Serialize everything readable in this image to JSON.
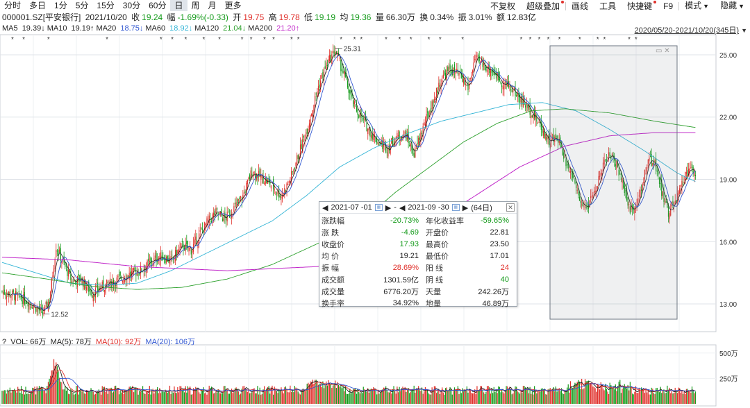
{
  "toolbar": {
    "left": [
      "分时",
      "多日",
      "1分",
      "5分",
      "15分",
      "30分",
      "60分",
      "日",
      "周",
      "月",
      "更多"
    ],
    "active_index": 7,
    "right": [
      {
        "label": "不复权",
        "dot": false,
        "arrow": false
      },
      {
        "label": "超级叠加",
        "dot": true,
        "arrow": false
      },
      {
        "label": "画线",
        "dot": false,
        "arrow": false
      },
      {
        "label": "工具",
        "dot": false,
        "arrow": false
      },
      {
        "label": "快捷键",
        "dot": true,
        "arrow": false
      },
      {
        "label": "F9",
        "dot": false,
        "arrow": false
      },
      {
        "label": "模式",
        "dot": false,
        "arrow": true
      },
      {
        "label": "隐藏",
        "dot": false,
        "arrow": true
      }
    ]
  },
  "stock": {
    "code": "000001.SZ[平安银行]",
    "date": "2021/10/20",
    "close_label": "收",
    "close": "19.24",
    "change_label": "幅",
    "change": "-1.69%(-0.33)",
    "open_label": "开",
    "open": "19.75",
    "high_label": "高",
    "high": "19.78",
    "low_label": "低",
    "low": "19.19",
    "avg_label": "均",
    "avg": "19.36",
    "vol_label": "量",
    "vol": "66.30万",
    "turn_label": "换",
    "turn": "0.34%",
    "amp_label": "振",
    "amp": "3.01%",
    "amt_label": "额",
    "amt": "12.83亿"
  },
  "ma": [
    {
      "label": "MA5",
      "value": "19.39↓",
      "color": "#222222"
    },
    {
      "label": "MA10",
      "value": "19.19↑",
      "color": "#222222"
    },
    {
      "label": "MA20",
      "value": "18.75↓",
      "color": "#3157d1"
    },
    {
      "label": "MA60",
      "value": "18.92↓",
      "color": "#35b5d6"
    },
    {
      "label": "MA120",
      "value": "21.04↓",
      "color": "#2ca02c"
    },
    {
      "label": "MA200",
      "value": "21.20↑",
      "color": "#c026c9"
    }
  ],
  "date_range": "2020/05/20-2021/10/20(345日)",
  "volume_line": {
    "prefix": "?",
    "vol": "VOL: 66万",
    "ma5": "MA(5): 78万",
    "ma10": "MA(10): 92万",
    "ma20": "MA(20): 106万"
  },
  "popup": {
    "start": "2021-07 -01",
    "end": "2021-09 -30",
    "sep": "-",
    "days": "(64日)",
    "rows": [
      {
        "k": "涨跌幅",
        "v": "-20.73%",
        "vc": "down",
        "k2": "年化收益率",
        "v2": "-59.65%",
        "v2c": "down"
      },
      {
        "k": "涨  跌",
        "v": "-4.69",
        "vc": "down",
        "k2": "开盘价",
        "v2": "22.81",
        "v2c": "dark"
      },
      {
        "k": "收盘价",
        "v": "17.93",
        "vc": "down",
        "k2": "最高价",
        "v2": "23.50",
        "v2c": "dark"
      },
      {
        "k": "均  价",
        "v": "19.21",
        "vc": "dark",
        "k2": "最低价",
        "v2": "17.01",
        "v2c": "dark"
      },
      {
        "k": "振  幅",
        "v": "28.69%",
        "vc": "up",
        "k2": "阳  线",
        "v2": "24",
        "v2c": "up"
      },
      {
        "k": "成交额",
        "v": "1301.59亿",
        "vc": "dark",
        "k2": "阴  线",
        "v2": "40",
        "v2c": "down"
      },
      {
        "k": "成交量",
        "v": "6776.20万",
        "vc": "dark",
        "k2": "天量",
        "v2": "242.26万",
        "v2c": "dark"
      },
      {
        "k": "换手率",
        "v": "34.92%",
        "vc": "dark",
        "k2": "地量",
        "v2": "46.89万",
        "v2c": "dark"
      }
    ]
  },
  "chart_data": {
    "type": "candlestick",
    "y_ticks": [
      "25.00",
      "22.00",
      "19.00",
      "16.00",
      "13.00"
    ],
    "y_values": [
      25,
      22,
      19,
      16,
      13
    ],
    "ylim": [
      12.2,
      25.5
    ],
    "vol_ticks": [
      "500万",
      "250万"
    ],
    "vol_values": [
      500,
      250
    ],
    "vol_ylim": [
      0,
      560
    ],
    "grid": true,
    "annotations": [
      {
        "text": "25.31",
        "price": 25.31
      },
      {
        "text": "12.52",
        "price": 12.52
      }
    ],
    "anchors": [
      [
        0,
        13.6
      ],
      [
        14,
        13.35
      ],
      [
        24,
        13.1
      ],
      [
        32,
        12.75
      ],
      [
        36,
        12.52
      ],
      [
        42,
        13.2
      ],
      [
        48,
        15.8
      ],
      [
        54,
        15.0
      ],
      [
        62,
        14.1
      ],
      [
        70,
        14.2
      ],
      [
        80,
        13.5
      ],
      [
        88,
        13.8
      ],
      [
        96,
        14.0
      ],
      [
        104,
        14.2
      ],
      [
        112,
        14.4
      ],
      [
        122,
        14.6
      ],
      [
        132,
        15.0
      ],
      [
        140,
        15.3
      ],
      [
        150,
        15.1
      ],
      [
        160,
        15.8
      ],
      [
        168,
        15.6
      ],
      [
        176,
        16.4
      ],
      [
        182,
        16.9
      ],
      [
        190,
        17.4
      ],
      [
        198,
        17.1
      ],
      [
        206,
        17.6
      ],
      [
        214,
        18.2
      ],
      [
        222,
        19.4
      ],
      [
        230,
        19.1
      ],
      [
        238,
        18.8
      ],
      [
        248,
        18.2
      ],
      [
        256,
        19.0
      ],
      [
        264,
        20.3
      ],
      [
        272,
        21.6
      ],
      [
        280,
        23.3
      ],
      [
        288,
        24.5
      ],
      [
        296,
        25.2
      ],
      [
        304,
        24.0
      ],
      [
        312,
        22.6
      ],
      [
        320,
        21.9
      ],
      [
        328,
        21.2
      ],
      [
        334,
        20.8
      ],
      [
        342,
        20.5
      ],
      [
        350,
        21.0
      ],
      [
        358,
        21.2
      ],
      [
        366,
        20.2
      ],
      [
        374,
        21.5
      ],
      [
        382,
        22.6
      ],
      [
        390,
        23.8
      ],
      [
        398,
        24.3
      ],
      [
        406,
        24.0
      ],
      [
        414,
        23.4
      ],
      [
        420,
        24.8
      ],
      [
        428,
        24.5
      ],
      [
        436,
        24.2
      ],
      [
        444,
        23.7
      ],
      [
        452,
        23.4
      ],
      [
        460,
        22.9
      ],
      [
        470,
        22.3
      ],
      [
        478,
        21.6
      ],
      [
        486,
        20.8
      ],
      [
        494,
        21.0
      ],
      [
        500,
        20.0
      ],
      [
        508,
        19.0
      ],
      [
        514,
        17.8
      ],
      [
        522,
        17.8
      ],
      [
        530,
        19.0
      ],
      [
        538,
        20.2
      ],
      [
        546,
        19.8
      ],
      [
        552,
        18.6
      ],
      [
        558,
        17.6
      ],
      [
        566,
        18.0
      ],
      [
        574,
        20.0
      ],
      [
        580,
        19.8
      ],
      [
        586,
        18.4
      ],
      [
        592,
        17.4
      ],
      [
        600,
        18.2
      ],
      [
        608,
        19.4
      ],
      [
        616,
        19.4
      ]
    ],
    "ma_colors": [
      "#222222",
      "#3157d1",
      "#35b5d6",
      "#2ca02c",
      "#c026c9"
    ],
    "vol_line_colors": [
      "#222222",
      "#e0302b",
      "#3157d1"
    ],
    "up_color": "#e0302b",
    "down_color": "#159b1b",
    "ma200_anchors": [
      [
        0,
        15.25
      ],
      [
        60,
        15.12
      ],
      [
        120,
        14.8
      ],
      [
        200,
        14.6
      ],
      [
        280,
        14.8
      ],
      [
        330,
        15.4
      ],
      [
        380,
        16.8
      ],
      [
        420,
        18.2
      ],
      [
        460,
        19.6
      ],
      [
        500,
        20.6
      ],
      [
        540,
        21.1
      ],
      [
        580,
        21.25
      ],
      [
        616,
        21.25
      ]
    ],
    "ma120_anchors": [
      [
        0,
        14.5
      ],
      [
        40,
        14.2
      ],
      [
        80,
        13.85
      ],
      [
        120,
        13.7
      ],
      [
        160,
        13.8
      ],
      [
        200,
        14.2
      ],
      [
        240,
        14.9
      ],
      [
        280,
        15.9
      ],
      [
        320,
        17.0
      ],
      [
        350,
        18.4
      ],
      [
        380,
        19.6
      ],
      [
        410,
        20.8
      ],
      [
        440,
        21.7
      ],
      [
        470,
        22.3
      ],
      [
        500,
        22.4
      ],
      [
        540,
        22.2
      ],
      [
        580,
        21.8
      ],
      [
        616,
        21.5
      ]
    ],
    "ma60_anchors": [
      [
        0,
        15.0
      ],
      [
        30,
        14.5
      ],
      [
        60,
        14.0
      ],
      [
        90,
        13.9
      ],
      [
        120,
        14.0
      ],
      [
        150,
        14.6
      ],
      [
        180,
        15.4
      ],
      [
        210,
        16.2
      ],
      [
        240,
        17.0
      ],
      [
        270,
        18.2
      ],
      [
        300,
        19.6
      ],
      [
        330,
        20.5
      ],
      [
        360,
        21.2
      ],
      [
        390,
        21.8
      ],
      [
        420,
        22.2
      ],
      [
        450,
        22.6
      ],
      [
        480,
        22.7
      ],
      [
        510,
        22.3
      ],
      [
        540,
        21.4
      ],
      [
        570,
        20.4
      ],
      [
        600,
        19.3
      ],
      [
        616,
        18.9
      ]
    ]
  }
}
